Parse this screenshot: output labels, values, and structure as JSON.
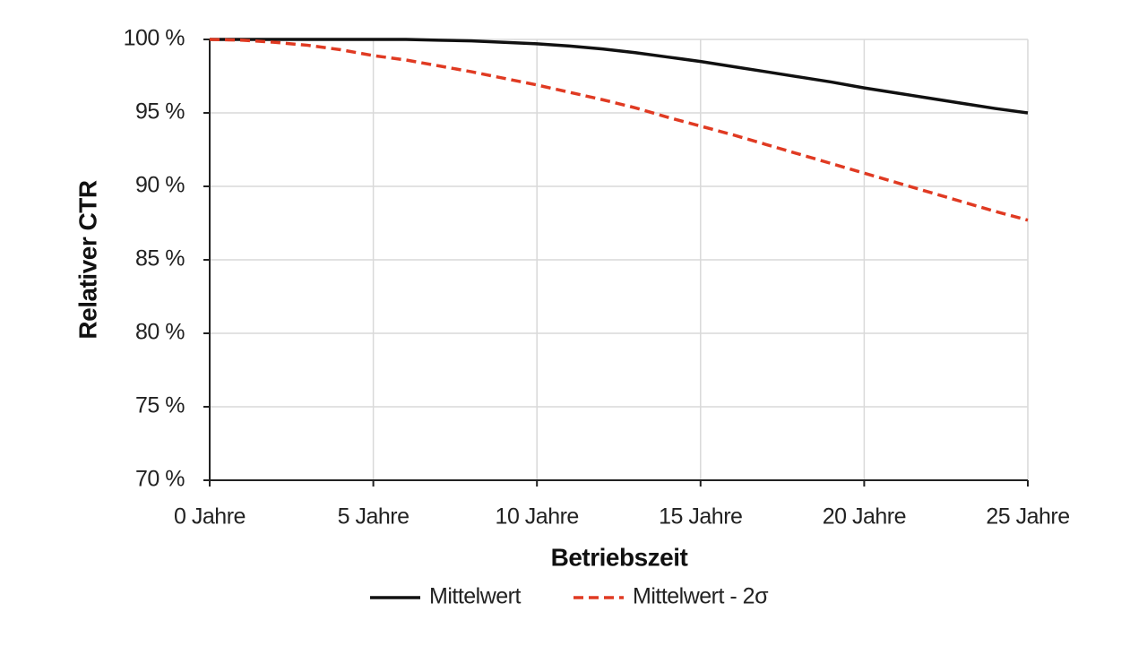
{
  "chart_data": {
    "type": "line",
    "x_label": "Betriebszeit",
    "y_label": "Relativer CTR",
    "x": [
      0,
      1,
      2,
      3,
      4,
      5,
      6,
      7,
      8,
      9,
      10,
      11,
      12,
      13,
      14,
      15,
      16,
      17,
      18,
      19,
      20,
      21,
      22,
      23,
      24,
      25
    ],
    "series": [
      {
        "name": "Mittelwert",
        "color": "#111111",
        "line_style": "solid",
        "values": [
          100,
          100,
          100,
          100,
          100,
          100,
          100,
          99.95,
          99.9,
          99.8,
          99.7,
          99.55,
          99.35,
          99.1,
          98.8,
          98.5,
          98.15,
          97.8,
          97.45,
          97.1,
          96.7,
          96.35,
          96.0,
          95.65,
          95.3,
          95.0
        ]
      },
      {
        "name": "Mittelwert - 2σ",
        "color": "#e03a22",
        "line_style": "dashed",
        "values": [
          100,
          99.95,
          99.8,
          99.6,
          99.3,
          98.9,
          98.6,
          98.2,
          97.8,
          97.35,
          96.9,
          96.4,
          95.9,
          95.35,
          94.7,
          94.1,
          93.5,
          92.85,
          92.2,
          91.55,
          90.9,
          90.25,
          89.6,
          88.95,
          88.3,
          87.7
        ]
      }
    ],
    "xlim": [
      0,
      25
    ],
    "xticks": [
      {
        "value": 0,
        "label": "0 Jahre"
      },
      {
        "value": 5,
        "label": "5 Jahre"
      },
      {
        "value": 10,
        "label": "10 Jahre"
      },
      {
        "value": 15,
        "label": "15 Jahre"
      },
      {
        "value": 20,
        "label": "20 Jahre"
      },
      {
        "value": 25,
        "label": "25 Jahre"
      }
    ],
    "ylim": [
      70,
      100
    ],
    "yticks": [
      {
        "value": 70,
        "label": "70 %"
      },
      {
        "value": 75,
        "label": "75 %"
      },
      {
        "value": 80,
        "label": "80 %"
      },
      {
        "value": 85,
        "label": "85 %"
      },
      {
        "value": 90,
        "label": "90 %"
      },
      {
        "value": 95,
        "label": "95 %"
      },
      {
        "value": 100,
        "label": "100 %"
      }
    ],
    "grid": true,
    "legend": "bottom"
  }
}
